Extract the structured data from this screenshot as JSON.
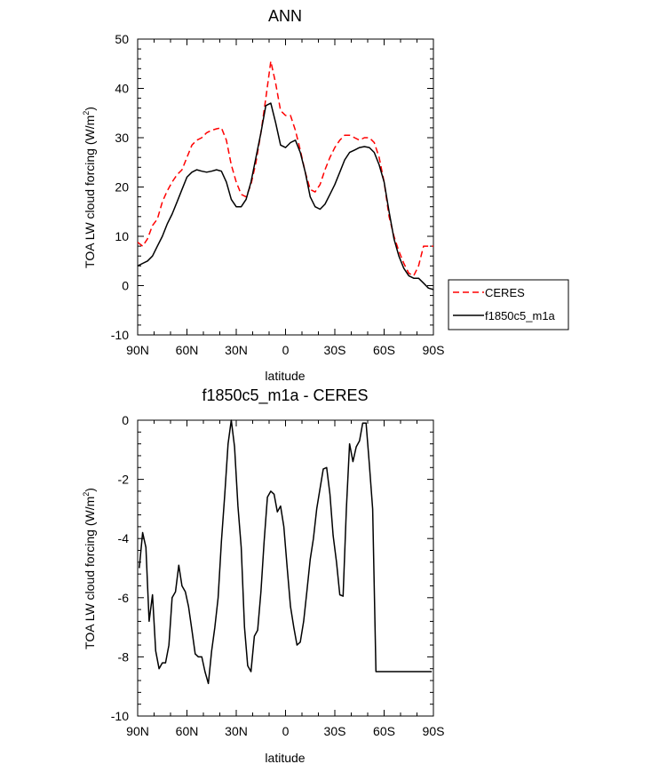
{
  "chart_data": [
    {
      "type": "line",
      "title": "ANN",
      "xlabel": "latitude",
      "ylabel": "TOA LW cloud forcing (W/m",
      "ylabel_sup": "2",
      "ylabel_tail": ")",
      "xlim": [
        -90,
        90
      ],
      "ylim": [
        -10,
        50
      ],
      "x_ticks": [
        -90,
        -60,
        -30,
        0,
        30,
        60,
        90
      ],
      "x_tick_labels": [
        "90N",
        "60N",
        "30N",
        "0",
        "30S",
        "60S",
        "90S"
      ],
      "y_ticks": [
        -10,
        0,
        10,
        20,
        30,
        40,
        50
      ],
      "y_tick_labels": [
        "-10",
        "0",
        "10",
        "20",
        "30",
        "40",
        "50"
      ],
      "legend_position": "right",
      "series": [
        {
          "name": "CERES",
          "color": "#ff0000",
          "dash": "dashed",
          "x": [
            -90,
            -87,
            -84,
            -81,
            -78,
            -75,
            -72,
            -69,
            -66,
            -63,
            -60,
            -57,
            -54,
            -51,
            -48,
            -45,
            -42,
            -39,
            -36,
            -33,
            -30,
            -27,
            -24,
            -21,
            -18,
            -15,
            -12,
            -9,
            -6,
            -3,
            0,
            3,
            6,
            9,
            12,
            15,
            18,
            21,
            24,
            27,
            30,
            33,
            36,
            39,
            42,
            45,
            48,
            51,
            54,
            57,
            60,
            63,
            66,
            69,
            72,
            75,
            78,
            81,
            84,
            87,
            90
          ],
          "values": [
            8.8,
            8.0,
            9.5,
            12.2,
            13.5,
            17.0,
            19.2,
            21.0,
            22.5,
            23.5,
            26.0,
            28.5,
            29.5,
            30.0,
            31.0,
            31.5,
            31.8,
            32.0,
            29.5,
            24.5,
            21.0,
            18.5,
            18.0,
            20.5,
            25.0,
            31.0,
            38.0,
            45.5,
            41.0,
            35.5,
            34.5,
            34.5,
            31.5,
            27.5,
            23.0,
            19.5,
            19.0,
            20.5,
            23.5,
            26.0,
            28.0,
            29.5,
            30.5,
            30.5,
            30.0,
            29.5,
            30.0,
            30.0,
            29.0,
            26.0,
            21.0,
            14.0,
            10.0,
            7.0,
            4.5,
            2.5,
            2.0,
            4.0,
            8.0,
            8.0,
            8.0
          ],
          "x_range_note": ""
        },
        {
          "name": "f1850c5_m1a",
          "color": "#000000",
          "dash": "solid",
          "x": [
            -90,
            -87,
            -84,
            -81,
            -78,
            -75,
            -72,
            -69,
            -66,
            -63,
            -60,
            -57,
            -54,
            -51,
            -48,
            -45,
            -42,
            -39,
            -36,
            -33,
            -30,
            -27,
            -24,
            -21,
            -18,
            -15,
            -12,
            -9,
            -6,
            -3,
            0,
            3,
            6,
            9,
            12,
            15,
            18,
            21,
            24,
            27,
            30,
            33,
            36,
            39,
            42,
            45,
            48,
            51,
            54,
            57,
            60,
            63,
            66,
            69,
            72,
            75,
            78,
            81,
            84,
            87,
            90
          ],
          "values": [
            4.0,
            4.5,
            5.0,
            6.0,
            8.0,
            10.0,
            12.5,
            14.5,
            17.0,
            19.5,
            22.0,
            23.0,
            23.5,
            23.2,
            23.0,
            23.2,
            23.5,
            23.2,
            21.0,
            17.5,
            16.0,
            16.0,
            17.5,
            21.0,
            26.0,
            31.0,
            36.5,
            37.0,
            33.0,
            28.5,
            28.0,
            29.0,
            29.5,
            27.0,
            23.0,
            18.0,
            16.0,
            15.5,
            16.5,
            18.5,
            20.5,
            23.0,
            25.5,
            27.0,
            27.5,
            28.0,
            28.2,
            28.0,
            27.0,
            24.5,
            21.0,
            15.0,
            9.5,
            6.0,
            3.5,
            2.0,
            1.5,
            1.5,
            0.5,
            -0.5,
            -0.8
          ]
        }
      ],
      "legend": [
        "CERES",
        "f1850c5_m1a"
      ]
    },
    {
      "type": "line",
      "title": "f1850c5_m1a - CERES",
      "xlabel": "latitude",
      "ylabel": "TOA LW cloud forcing (W/m",
      "ylabel_sup": "2",
      "ylabel_tail": ")",
      "xlim": [
        -90,
        90
      ],
      "ylim": [
        -10,
        0
      ],
      "x_ticks": [
        -90,
        -60,
        -30,
        0,
        30,
        60,
        90
      ],
      "x_tick_labels": [
        "90N",
        "60N",
        "30N",
        "0",
        "30S",
        "60S",
        "90S"
      ],
      "y_ticks": [
        -10,
        -8,
        -6,
        -4,
        -2,
        0
      ],
      "y_tick_labels": [
        "-10",
        "-8",
        "-6",
        "-4",
        "-2",
        "0"
      ],
      "series": [
        {
          "color": "#000000",
          "dash": "solid",
          "x": [
            -89,
            -87,
            -85,
            -83,
            -81,
            -79,
            -77,
            -75,
            -73,
            -71,
            -69,
            -67,
            -65,
            -63,
            -61,
            -59,
            -57,
            -55,
            -53,
            -51,
            -49,
            -47,
            -45,
            -43,
            -41,
            -39,
            -37,
            -35,
            -33,
            -31,
            -29,
            -27,
            -25,
            -23,
            -21,
            -19,
            -17,
            -15,
            -13,
            -11,
            -9,
            -7,
            -5,
            -3,
            -1,
            1,
            3,
            5,
            7,
            9,
            11,
            13,
            15,
            17,
            19,
            21,
            23,
            25,
            27,
            29,
            31,
            33,
            35,
            37,
            39,
            41,
            43,
            45,
            47,
            49,
            51,
            53,
            55,
            57,
            59,
            61,
            63,
            65,
            67,
            69,
            71,
            73,
            75,
            77,
            79,
            81,
            83,
            85,
            87,
            89
          ],
          "values": [
            -5.0,
            -3.8,
            -4.3,
            -6.8,
            -5.9,
            -7.8,
            -8.4,
            -8.2,
            -8.2,
            -7.6,
            -6.0,
            -5.8,
            -4.9,
            -5.6,
            -5.8,
            -6.3,
            -7.1,
            -7.9,
            -8.0,
            -8.0,
            -8.5,
            -8.9,
            -7.8,
            -7.0,
            -6.0,
            -4.1,
            -2.5,
            -0.8,
            0.0,
            -0.9,
            -2.9,
            -4.3,
            -7.0,
            -8.3,
            -8.5,
            -7.3,
            -7.1,
            -5.8,
            -4.1,
            -2.6,
            -2.4,
            -2.5,
            -3.1,
            -2.9,
            -3.6,
            -5.0,
            -6.3,
            -7.0,
            -7.6,
            -7.5,
            -6.8,
            -5.8,
            -4.7,
            -4.0,
            -3.0,
            -2.3,
            -1.65,
            -1.6,
            -2.5,
            -3.9,
            -4.8,
            -5.9,
            -5.95,
            -3.0,
            -0.8,
            -1.4,
            -0.9,
            -0.7,
            -0.1,
            -0.1,
            -1.5,
            -3.0,
            -8.5,
            -8.5,
            -8.5,
            -8.5,
            -8.5,
            -8.5,
            -8.5,
            -8.5,
            -8.5,
            -8.5,
            -8.5,
            -8.5,
            -8.5,
            -8.5,
            -8.5,
            -8.5,
            -8.5,
            -8.5
          ]
        }
      ]
    }
  ]
}
